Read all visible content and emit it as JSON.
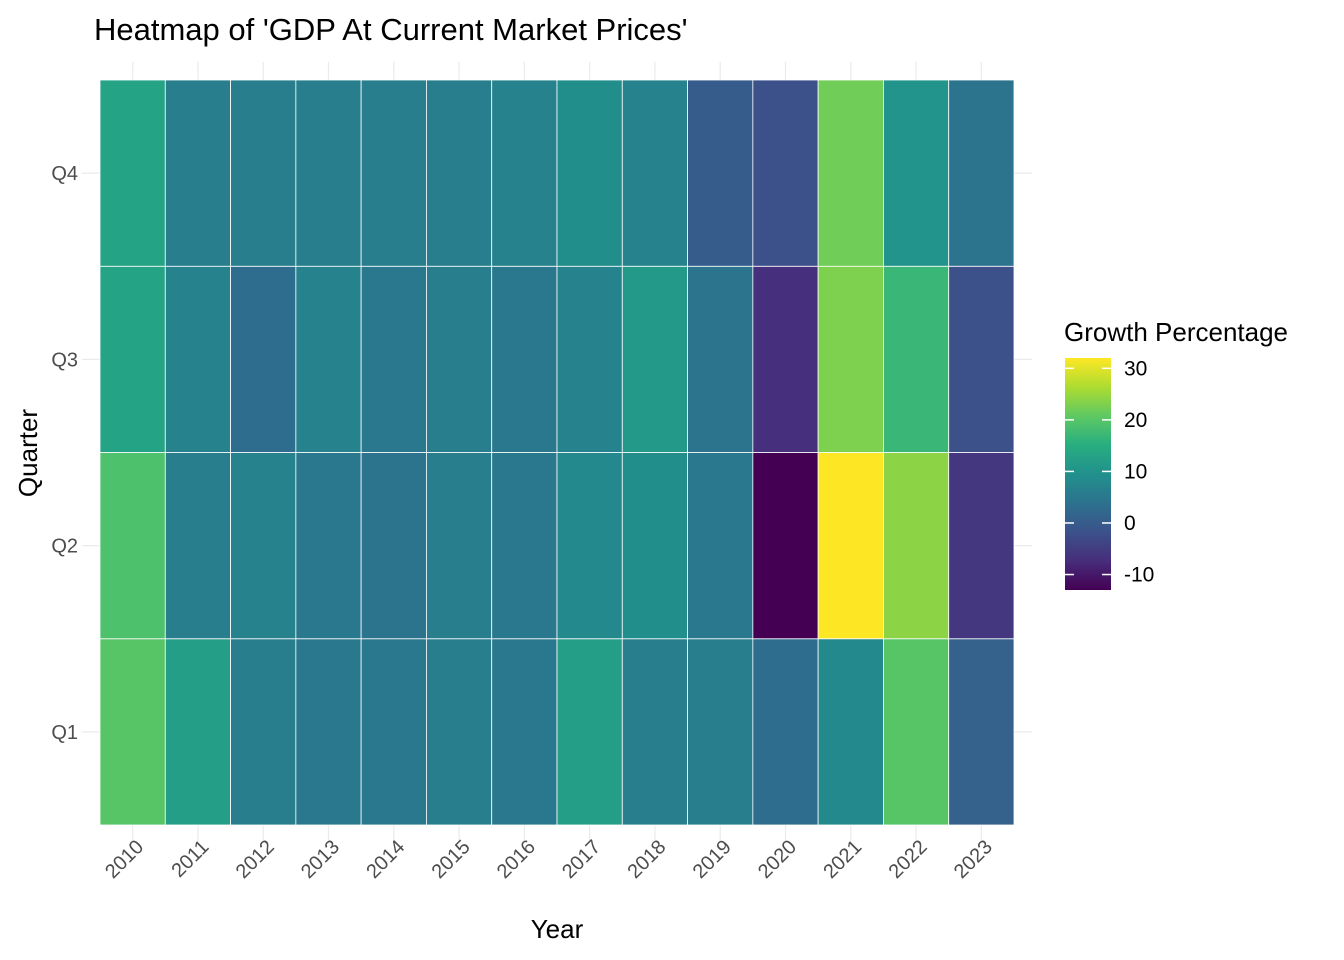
{
  "chart_data": {
    "type": "heatmap",
    "title": "Heatmap of 'GDP At Current Market Prices'",
    "xlabel": "Year",
    "ylabel": "Quarter",
    "x": [
      "2010",
      "2011",
      "2012",
      "2013",
      "2014",
      "2015",
      "2016",
      "2017",
      "2018",
      "2019",
      "2020",
      "2021",
      "2022",
      "2023"
    ],
    "y": [
      "Q1",
      "Q2",
      "Q3",
      "Q4"
    ],
    "values": {
      "Q1": [
        20,
        12,
        6,
        5,
        5,
        6,
        5,
        12,
        6,
        6,
        3,
        8,
        20,
        1
      ],
      "Q2": [
        19,
        6,
        7,
        5,
        4,
        6,
        5,
        8,
        9,
        5,
        -13,
        32,
        24,
        -6
      ],
      "Q3": [
        13,
        7,
        3,
        7,
        5,
        6,
        5,
        7,
        11,
        4,
        -7,
        23,
        17,
        -2
      ],
      "Q4": [
        13,
        6,
        6,
        6,
        6,
        6,
        7,
        9,
        7,
        0,
        -2,
        22,
        10,
        4
      ]
    },
    "color_scale": {
      "name": "Growth Percentage",
      "palette": "viridis",
      "min": -13,
      "max": 32,
      "ticks": [
        30,
        20,
        10,
        0,
        -10
      ]
    },
    "legend_position": "right",
    "grid": true
  }
}
